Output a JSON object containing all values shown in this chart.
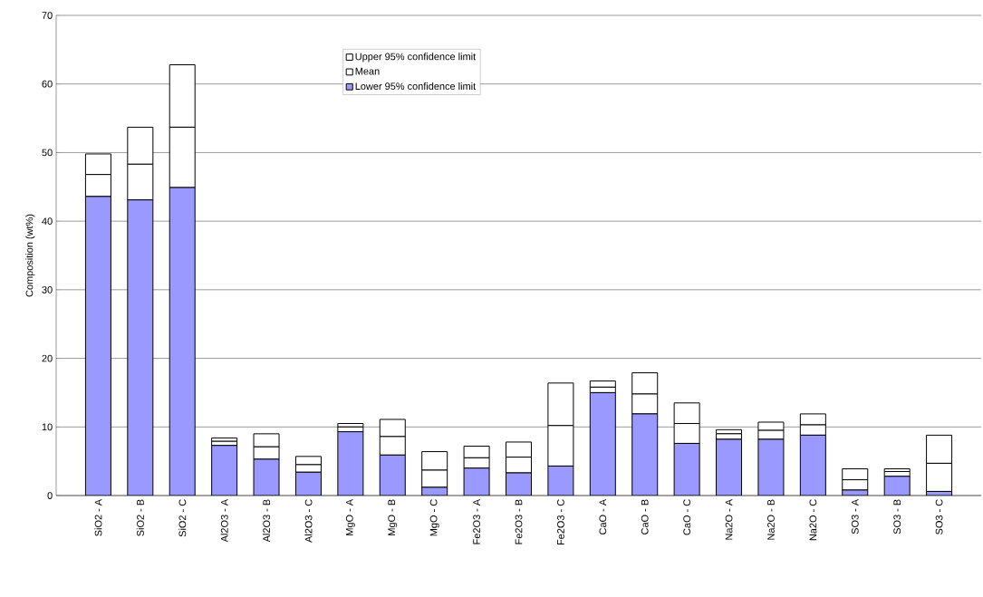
{
  "chart_data": {
    "type": "bar",
    "stacked": true,
    "ylabel": "Composition (wt%)",
    "categories": [
      "SiO2 - A",
      "SiO2 - B",
      "SiO2 - C",
      "Al2O3 - A",
      "Al2O3 - B",
      "Al2O3 - C",
      "MgO - A",
      "MgO - B",
      "MgO - C",
      "Fe2O3 - A",
      "Fe2O3 - B",
      "Fe2O3 - C",
      "CaO - A",
      "CaO - B",
      "CaO - C",
      "Na2O - A",
      "Na2O - B",
      "Na2O - C",
      "SO3 - A",
      "SO3 - B",
      "SO3 - C"
    ],
    "series": [
      {
        "name": "Lower 95% confidence limit",
        "color": "#9999ff",
        "values": [
          43.6,
          43.1,
          44.9,
          7.3,
          5.3,
          3.4,
          9.3,
          5.9,
          1.2,
          4.0,
          3.3,
          4.3,
          15.0,
          11.9,
          7.6,
          8.2,
          8.2,
          8.8,
          0.8,
          2.8,
          0.6
        ]
      },
      {
        "name": "Mean",
        "color": "#ffffff",
        "values": [
          3.2,
          5.2,
          8.8,
          0.6,
          1.8,
          1.1,
          0.7,
          2.7,
          2.5,
          1.5,
          2.3,
          5.9,
          0.8,
          2.9,
          2.9,
          0.8,
          1.3,
          1.5,
          1.5,
          0.7,
          4.1
        ]
      },
      {
        "name": "Upper 95% confidence limit",
        "color": "#ffffff",
        "values": [
          3.0,
          5.4,
          9.1,
          0.5,
          1.9,
          1.2,
          0.5,
          2.5,
          2.7,
          1.7,
          2.2,
          6.2,
          0.9,
          3.1,
          3.0,
          0.6,
          1.2,
          1.6,
          1.6,
          0.4,
          4.1
        ]
      }
    ],
    "ylim": [
      0,
      70
    ],
    "yticks": [
      0,
      10,
      20,
      30,
      40,
      50,
      60,
      70
    ],
    "grid": "y",
    "legend": "top"
  }
}
